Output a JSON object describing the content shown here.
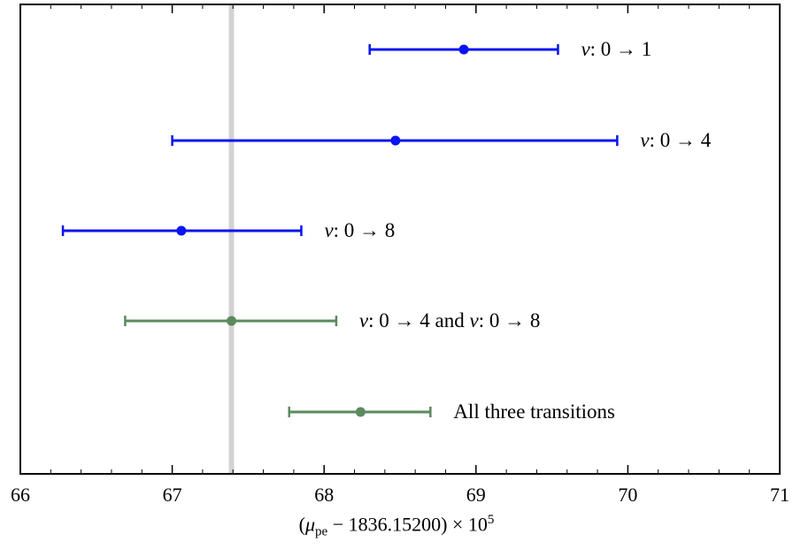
{
  "chart_data": {
    "type": "scatter",
    "title": "",
    "xlim": [
      66,
      71
    ],
    "xticks": [
      66,
      67,
      68,
      69,
      70,
      71
    ],
    "xtick_labels": [
      "66",
      "67",
      "68",
      "69",
      "70",
      "71"
    ],
    "xlabel": {
      "pre": "(",
      "mu": "μ",
      "sub": "pe",
      "rest": " − 1836.15200) × 10",
      "sup": "5"
    },
    "reference_line": {
      "x": 67.39,
      "color": "#d3d3d3"
    },
    "series": [
      {
        "name": "v: 0 → 1",
        "label_v": "v",
        "label_rest": ": 0 → 1",
        "value": 68.92,
        "err_low": 68.3,
        "err_high": 69.54,
        "color": "#0a14f0"
      },
      {
        "name": "v: 0 → 4",
        "label_v": "v",
        "label_rest": ": 0 → 4",
        "value": 68.47,
        "err_low": 67.0,
        "err_high": 69.93,
        "color": "#0a14f0"
      },
      {
        "name": "v: 0 → 8",
        "label_v": "v",
        "label_rest": ": 0 → 8",
        "value": 67.06,
        "err_low": 66.28,
        "err_high": 67.85,
        "color": "#0a14f0"
      },
      {
        "name": "v: 0 → 4 and v: 0 → 8",
        "label_v": "v",
        "label_rest": ": 0 → 4 and ",
        "label_v2": "v",
        "label_rest2": ": 0 → 8",
        "value": 67.39,
        "err_low": 66.69,
        "err_high": 68.08,
        "color": "#5a8a5e"
      },
      {
        "name": "All three transitions",
        "label_v": "",
        "label_rest": "All three transitions",
        "value": 68.24,
        "err_low": 67.77,
        "err_high": 68.7,
        "color": "#5a8a5e"
      }
    ],
    "grid": false,
    "legend": "none"
  }
}
